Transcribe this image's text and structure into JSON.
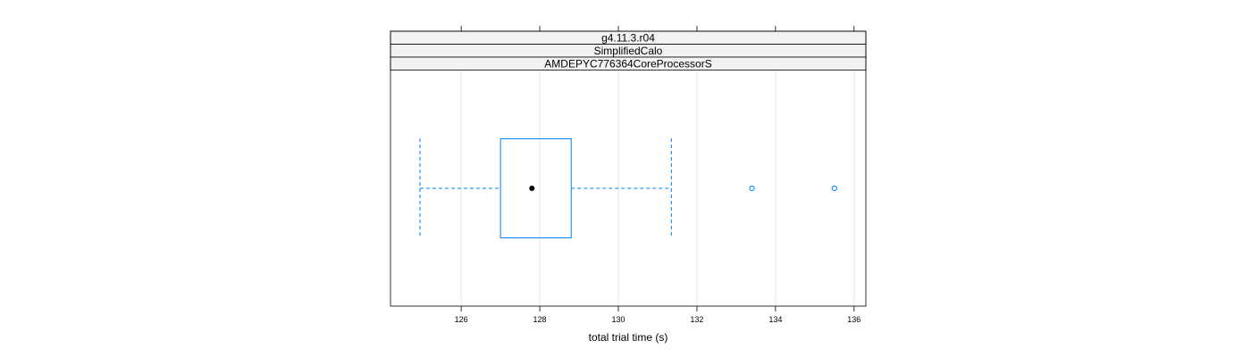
{
  "chart_data": {
    "type": "boxplot",
    "orientation": "horizontal",
    "strips": [
      "g4.11.3.r04",
      "SimplifiedCalo",
      "AMDEPYC776364CoreProcessorS"
    ],
    "xlabel": "total trial time (s)",
    "xlim": [
      124.2,
      136.3
    ],
    "ticks": [
      126,
      128,
      130,
      132,
      134,
      136
    ],
    "tick_labels": [
      "126",
      "128",
      "130",
      "132",
      "134",
      "136"
    ],
    "grid": true,
    "box": {
      "whisker_low": 124.95,
      "q1": 127.0,
      "median": 127.8,
      "q3": 128.8,
      "whisker_high": 131.35
    },
    "outliers": [
      133.4,
      135.5
    ],
    "colors": {
      "box": "#0080ff",
      "median_dot": "#000000",
      "grid": "#e6e6e6",
      "strip_bg": "#f2f2f2",
      "frame": "#000000"
    }
  }
}
